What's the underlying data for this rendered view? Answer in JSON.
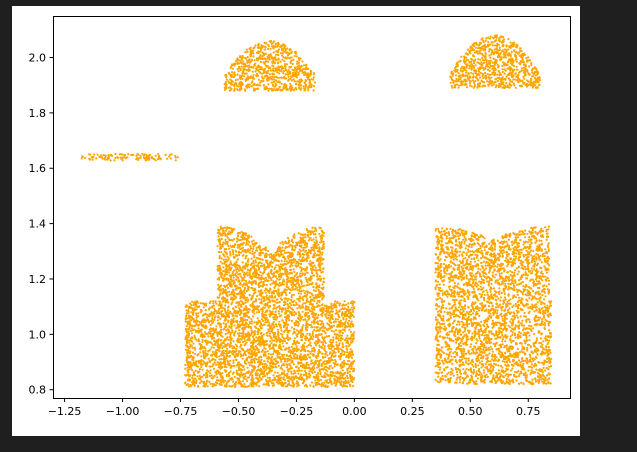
{
  "colors": {
    "background": "#1f1f1f",
    "figure": "#ffffff",
    "points": "#ffa500",
    "axes": "#000000"
  },
  "chart_data": {
    "type": "scatter",
    "title": "",
    "xlabel": "",
    "ylabel": "",
    "xlim": [
      -1.3,
      0.93
    ],
    "ylim": [
      0.77,
      2.15
    ],
    "grid": false,
    "legend": "none",
    "xticks": [
      -1.25,
      -1.0,
      -0.75,
      -0.5,
      -0.25,
      0.0,
      0.25,
      0.5,
      0.75
    ],
    "xtick_labels": [
      "−1.25",
      "−1.00",
      "−0.75",
      "−0.50",
      "−0.25",
      "0.00",
      "0.25",
      "0.50",
      "0.75"
    ],
    "yticks": [
      0.8,
      1.0,
      1.2,
      1.4,
      1.6,
      1.8,
      2.0
    ],
    "ytick_labels": [
      "0.8",
      "1.0",
      "1.2",
      "1.4",
      "1.6",
      "1.8",
      "2.0"
    ],
    "clusters": [
      {
        "kind": "band",
        "x_range": [
          -1.18,
          -0.76
        ],
        "y_center": 1.64,
        "y_half": 0.012
      },
      {
        "kind": "dome",
        "x_range": [
          -0.56,
          -0.17
        ],
        "y_base": 1.88,
        "y_shoulder": 1.94,
        "y_peak": 2.06
      },
      {
        "kind": "dome",
        "x_range": [
          0.41,
          0.8
        ],
        "y_base": 1.89,
        "y_shoulder": 1.94,
        "y_peak": 2.08
      },
      {
        "kind": "shirt",
        "x_range": [
          -0.73,
          0.0
        ],
        "y_bottom": 0.81,
        "y_body_top": 1.12,
        "shoulder_x": [
          -0.59,
          -0.13
        ],
        "y_shoulder": 1.39,
        "neck_depth": 0.09
      },
      {
        "kind": "shirt",
        "x_range": [
          0.35,
          0.85
        ],
        "y_bottom": 0.82,
        "y_body_top": 1.12,
        "shoulder_x": [
          0.35,
          0.84
        ],
        "y_shoulder": 1.39,
        "neck_depth": 0.05
      }
    ]
  }
}
